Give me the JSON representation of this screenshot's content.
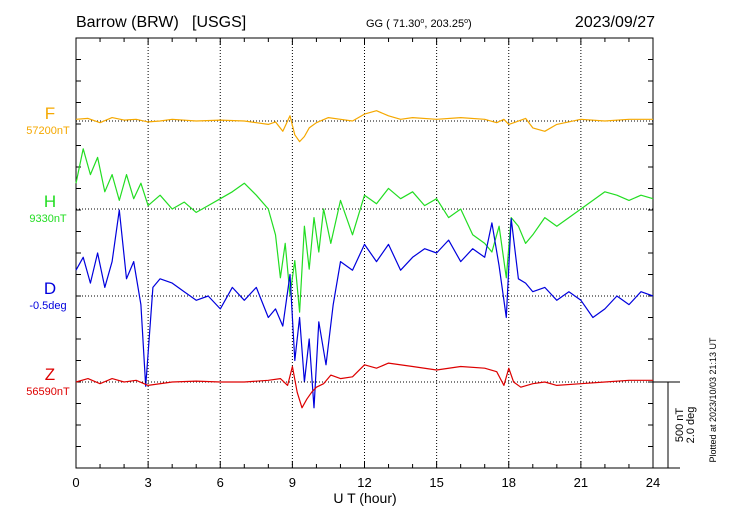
{
  "header": {
    "station": "Barrow (BRW)",
    "source": "[USGS]",
    "coords_prefix": "GG ( 71.30",
    "coords_mid": ", 203.25",
    "coords_suffix": ")",
    "date": "2023/09/27"
  },
  "plotted_note": "Plotted at 2023/10/03 21:13 UT",
  "chart_data": {
    "type": "line",
    "xlabel": "U T (hour)",
    "xlim": [
      0,
      24
    ],
    "xticks": [
      "0",
      "3",
      "6",
      "9",
      "12",
      "15",
      "18",
      "21",
      "24"
    ],
    "grid": "dotted vertical every 3 h",
    "scale_bar": {
      "line1": "500 nT",
      "line2": "2.0 deg",
      "nT": 500,
      "deg": 2.0
    },
    "series": [
      {
        "name": "F",
        "baseline_label": "57200nT",
        "baseline": 57200,
        "color": "#f5a800",
        "x": [
          0,
          0.5,
          1,
          1.5,
          2,
          2.5,
          3,
          3.5,
          4,
          5,
          6,
          7,
          7.5,
          8,
          8.3,
          8.6,
          8.9,
          9.1,
          9.3,
          9.5,
          9.7,
          10,
          10.5,
          11,
          11.5,
          12,
          12.5,
          13,
          13.5,
          14,
          15,
          16,
          17,
          17.5,
          17.8,
          18,
          18.3,
          18.7,
          19,
          19.5,
          20,
          21,
          22,
          23,
          24
        ],
        "y": [
          10,
          15,
          -10,
          20,
          5,
          10,
          -5,
          0,
          10,
          0,
          5,
          0,
          -10,
          -20,
          -5,
          -60,
          30,
          -80,
          -120,
          -90,
          -40,
          -10,
          20,
          10,
          0,
          40,
          60,
          30,
          10,
          20,
          10,
          20,
          10,
          -10,
          10,
          -20,
          -5,
          15,
          -40,
          -60,
          -20,
          10,
          0,
          10,
          10
        ]
      },
      {
        "name": "H",
        "baseline_label": "9330nT",
        "baseline": 9330,
        "color": "#22dd22",
        "x": [
          0,
          0.3,
          0.6,
          0.9,
          1.2,
          1.5,
          1.8,
          2.1,
          2.4,
          2.7,
          3,
          3.5,
          4,
          4.5,
          5,
          5.5,
          6,
          6.5,
          7,
          7.5,
          8,
          8.3,
          8.5,
          8.7,
          8.9,
          9.1,
          9.3,
          9.5,
          9.7,
          9.9,
          10.1,
          10.3,
          10.6,
          11,
          11.5,
          12,
          12.5,
          13,
          13.5,
          14,
          14.5,
          15,
          15.5,
          16,
          16.5,
          17,
          17.3,
          17.6,
          17.9,
          18.1,
          18.4,
          18.7,
          19,
          19.5,
          20,
          20.5,
          21,
          21.5,
          22,
          22.5,
          23,
          23.5,
          24
        ],
        "y": [
          150,
          350,
          200,
          300,
          100,
          200,
          50,
          200,
          60,
          150,
          20,
          80,
          0,
          40,
          -20,
          20,
          60,
          100,
          150,
          80,
          0,
          -150,
          -400,
          -200,
          -500,
          -300,
          -600,
          -100,
          -350,
          -50,
          -250,
          0,
          -200,
          50,
          -150,
          80,
          30,
          120,
          60,
          100,
          20,
          60,
          -50,
          0,
          -150,
          -200,
          -250,
          -100,
          -400,
          -50,
          -100,
          -200,
          -150,
          -50,
          -100,
          -50,
          0,
          50,
          100,
          80,
          50,
          80,
          60
        ]
      },
      {
        "name": "D",
        "baseline_label": "-0.5deg",
        "baseline": -0.5,
        "color": "#0000dd",
        "x": [
          0,
          0.3,
          0.6,
          0.9,
          1.2,
          1.5,
          1.8,
          2.1,
          2.4,
          2.7,
          2.9,
          3.2,
          3.5,
          4,
          4.5,
          5,
          5.5,
          6,
          6.5,
          7,
          7.5,
          8,
          8.3,
          8.6,
          8.9,
          9.1,
          9.3,
          9.5,
          9.7,
          9.9,
          10.1,
          10.4,
          10.7,
          11,
          11.5,
          12,
          12.5,
          13,
          13.5,
          14,
          14.5,
          15,
          15.5,
          16,
          16.5,
          17,
          17.3,
          17.6,
          17.9,
          18.1,
          18.4,
          18.7,
          19,
          19.5,
          20,
          20.5,
          21,
          21.5,
          22,
          22.5,
          23,
          23.5,
          24
        ],
        "y": [
          0.6,
          0.9,
          0.3,
          1.0,
          0.2,
          0.8,
          2.0,
          0.4,
          0.8,
          -0.2,
          -2.1,
          0.2,
          0.4,
          0.3,
          0.1,
          -0.1,
          0.0,
          -0.3,
          0.2,
          -0.1,
          0.2,
          -0.5,
          -0.3,
          -0.7,
          0.5,
          -1.5,
          -0.5,
          -2.0,
          -1.0,
          -2.6,
          -0.6,
          -1.6,
          -0.2,
          0.8,
          0.6,
          1.2,
          0.8,
          1.2,
          0.6,
          0.9,
          1.1,
          1.0,
          1.3,
          0.8,
          1.1,
          0.9,
          1.7,
          0.7,
          -0.5,
          1.8,
          0.4,
          0.3,
          0.1,
          0.2,
          -0.1,
          0.1,
          -0.1,
          -0.5,
          -0.3,
          0.0,
          -0.2,
          0.1,
          0.0
        ]
      },
      {
        "name": "Z",
        "baseline_label": "56590nT",
        "baseline": 56590,
        "color": "#dd0000",
        "x": [
          0,
          0.5,
          1,
          1.5,
          2,
          2.5,
          3,
          4,
          5,
          6,
          7,
          8,
          8.5,
          8.8,
          9.0,
          9.2,
          9.4,
          9.6,
          9.8,
          10,
          10.3,
          10.6,
          11,
          11.5,
          12,
          12.5,
          13,
          14,
          15,
          16,
          17,
          17.5,
          17.8,
          18,
          18.2,
          18.5,
          19,
          19.5,
          20,
          21,
          22,
          23,
          24
        ],
        "y": [
          0,
          20,
          -10,
          20,
          0,
          10,
          -20,
          0,
          5,
          0,
          0,
          10,
          20,
          -20,
          90,
          -60,
          -150,
          -100,
          -60,
          -30,
          -10,
          40,
          20,
          30,
          100,
          80,
          110,
          90,
          70,
          90,
          80,
          60,
          -20,
          80,
          0,
          -30,
          -10,
          0,
          -20,
          -10,
          0,
          10,
          10
        ]
      }
    ]
  }
}
